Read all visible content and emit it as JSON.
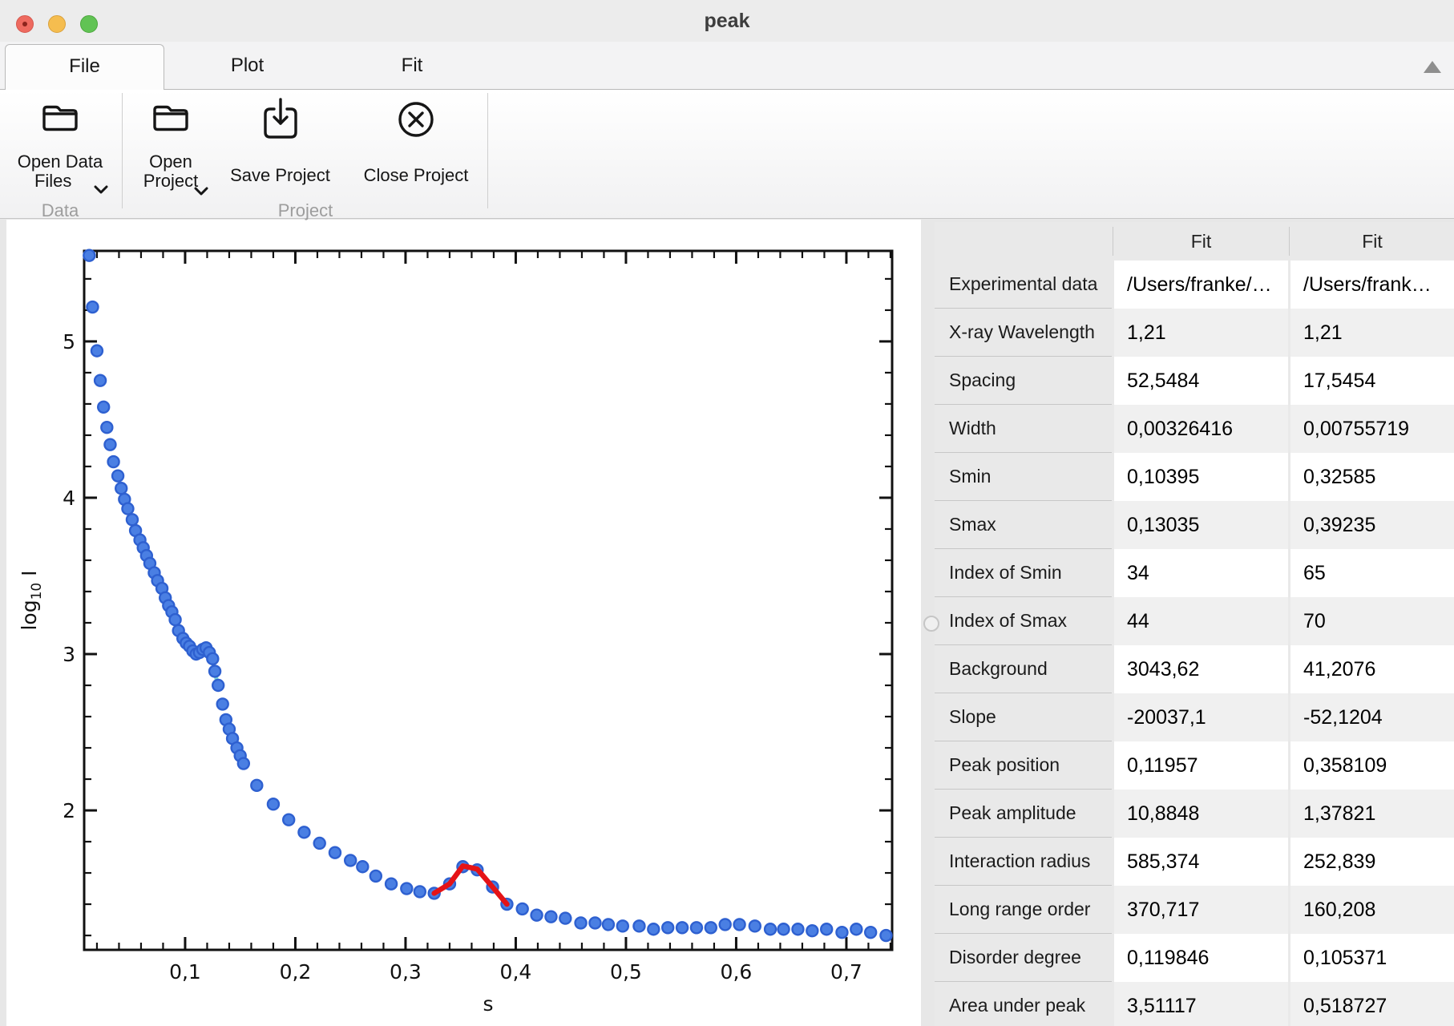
{
  "window": {
    "title": "peak"
  },
  "tabs": [
    {
      "label": "File",
      "active": true
    },
    {
      "label": "Plot",
      "active": false
    },
    {
      "label": "Fit",
      "active": false
    }
  ],
  "ribbon": {
    "buttons": {
      "open_data_files": {
        "line1": "Open Data",
        "line2": "Files",
        "has_dropdown": true
      },
      "open_project": {
        "line1": "Open",
        "line2": "Project",
        "has_dropdown": true
      },
      "save_project": {
        "label": "Save Project"
      },
      "close_project": {
        "label": "Close Project"
      }
    },
    "groups": [
      {
        "label": "Data"
      },
      {
        "label": "Project"
      }
    ],
    "collapse_icon": "triangle-up-icon"
  },
  "table": {
    "columns": [
      "",
      "Fit",
      "Fit"
    ],
    "rows": [
      {
        "label": "Experimental data",
        "fit1": "/Users/franke/…",
        "fit2": "/Users/frank…"
      },
      {
        "label": "X-ray Wavelength",
        "fit1": "1,21",
        "fit2": "1,21"
      },
      {
        "label": "Spacing",
        "fit1": "52,5484",
        "fit2": "17,5454"
      },
      {
        "label": "Width",
        "fit1": "0,00326416",
        "fit2": "0,00755719"
      },
      {
        "label": "Smin",
        "fit1": "0,10395",
        "fit2": "0,32585"
      },
      {
        "label": "Smax",
        "fit1": "0,13035",
        "fit2": "0,39235"
      },
      {
        "label": "Index of Smin",
        "fit1": "34",
        "fit2": "65"
      },
      {
        "label": "Index of Smax",
        "fit1": "44",
        "fit2": "70"
      },
      {
        "label": "Background",
        "fit1": "3043,62",
        "fit2": "41,2076"
      },
      {
        "label": "Slope",
        "fit1": "-20037,1",
        "fit2": "-52,1204"
      },
      {
        "label": "Peak position",
        "fit1": "0,11957",
        "fit2": "0,358109"
      },
      {
        "label": "Peak amplitude",
        "fit1": "10,8848",
        "fit2": "1,37821"
      },
      {
        "label": "Interaction radius",
        "fit1": "585,374",
        "fit2": "252,839"
      },
      {
        "label": "Long range order",
        "fit1": "370,717",
        "fit2": "160,208"
      },
      {
        "label": "Disorder degree",
        "fit1": "0,119846",
        "fit2": "0,105371"
      },
      {
        "label": "Area under peak",
        "fit1": "3,51117",
        "fit2": "0,518727"
      }
    ]
  },
  "chart_data": {
    "type": "scatter",
    "title": "",
    "xlabel": "s",
    "ylabel": "log10 I",
    "ylabel_parts": [
      "log",
      "10",
      " I"
    ],
    "xlim": [
      0.0084,
      0.7415
    ],
    "ylim": [
      1.108,
      5.579
    ],
    "x_tick_values": [
      0.1,
      0.2,
      0.3,
      0.4,
      0.5,
      0.6,
      0.7
    ],
    "x_tick_labels": [
      "0,1",
      "0,2",
      "0,3",
      "0,4",
      "0,5",
      "0,6",
      "0,7"
    ],
    "y_tick_values": [
      2,
      3,
      4,
      5
    ],
    "y_tick_labels": [
      "2",
      "3",
      "4",
      "5"
    ],
    "x_minor_step": 0.02,
    "x_major_step": 0.1,
    "y_minor_step": 0.2,
    "y_major_step": 1,
    "grid": false,
    "legend": false,
    "point_color": "#4a7fe3",
    "point_stroke": "#2e60d0",
    "frame_color": "#111111",
    "points": [
      [
        0.013,
        5.55
      ],
      [
        0.016,
        5.22
      ],
      [
        0.02,
        4.94
      ],
      [
        0.023,
        4.75
      ],
      [
        0.026,
        4.58
      ],
      [
        0.029,
        4.45
      ],
      [
        0.032,
        4.34
      ],
      [
        0.035,
        4.23
      ],
      [
        0.039,
        4.14
      ],
      [
        0.042,
        4.06
      ],
      [
        0.045,
        3.99
      ],
      [
        0.048,
        3.93
      ],
      [
        0.052,
        3.86
      ],
      [
        0.055,
        3.79
      ],
      [
        0.059,
        3.73
      ],
      [
        0.062,
        3.68
      ],
      [
        0.065,
        3.63
      ],
      [
        0.068,
        3.58
      ],
      [
        0.072,
        3.52
      ],
      [
        0.075,
        3.47
      ],
      [
        0.079,
        3.42
      ],
      [
        0.082,
        3.36
      ],
      [
        0.085,
        3.31
      ],
      [
        0.088,
        3.27
      ],
      [
        0.091,
        3.22
      ],
      [
        0.094,
        3.15
      ],
      [
        0.098,
        3.1
      ],
      [
        0.101,
        3.07
      ],
      [
        0.104,
        3.05
      ],
      [
        0.107,
        3.02
      ],
      [
        0.11,
        3.0
      ],
      [
        0.113,
        3.01
      ],
      [
        0.116,
        3.03
      ],
      [
        0.119,
        3.04
      ],
      [
        0.122,
        3.01
      ],
      [
        0.125,
        2.97
      ],
      [
        0.127,
        2.89
      ],
      [
        0.13,
        2.8
      ],
      [
        0.134,
        2.68
      ],
      [
        0.137,
        2.58
      ],
      [
        0.14,
        2.52
      ],
      [
        0.143,
        2.46
      ],
      [
        0.147,
        2.4
      ],
      [
        0.15,
        2.35
      ],
      [
        0.153,
        2.3
      ],
      [
        0.165,
        2.16
      ],
      [
        0.18,
        2.04
      ],
      [
        0.194,
        1.94
      ],
      [
        0.208,
        1.86
      ],
      [
        0.222,
        1.79
      ],
      [
        0.236,
        1.73
      ],
      [
        0.25,
        1.68
      ],
      [
        0.261,
        1.64
      ],
      [
        0.273,
        1.58
      ],
      [
        0.287,
        1.53
      ],
      [
        0.301,
        1.5
      ],
      [
        0.313,
        1.48
      ],
      [
        0.326,
        1.47
      ],
      [
        0.34,
        1.53
      ],
      [
        0.352,
        1.64
      ],
      [
        0.365,
        1.62
      ],
      [
        0.379,
        1.51
      ],
      [
        0.392,
        1.4
      ],
      [
        0.406,
        1.37
      ],
      [
        0.419,
        1.33
      ],
      [
        0.432,
        1.32
      ],
      [
        0.445,
        1.31
      ],
      [
        0.459,
        1.28
      ],
      [
        0.472,
        1.28
      ],
      [
        0.484,
        1.27
      ],
      [
        0.497,
        1.26
      ],
      [
        0.512,
        1.26
      ],
      [
        0.525,
        1.24
      ],
      [
        0.538,
        1.25
      ],
      [
        0.551,
        1.25
      ],
      [
        0.564,
        1.25
      ],
      [
        0.577,
        1.25
      ],
      [
        0.59,
        1.27
      ],
      [
        0.603,
        1.27
      ],
      [
        0.617,
        1.26
      ],
      [
        0.631,
        1.24
      ],
      [
        0.643,
        1.24
      ],
      [
        0.656,
        1.24
      ],
      [
        0.669,
        1.23
      ],
      [
        0.682,
        1.24
      ],
      [
        0.696,
        1.22
      ],
      [
        0.709,
        1.24
      ],
      [
        0.722,
        1.22
      ],
      [
        0.736,
        1.2
      ]
    ],
    "fits": [
      {
        "name": "fit-region-low-s",
        "color": "#7fd5d2",
        "width": 5,
        "points": [
          [
            0.104,
            3.05
          ],
          [
            0.107,
            3.02
          ],
          [
            0.11,
            3.0
          ],
          [
            0.113,
            3.01
          ],
          [
            0.116,
            3.03
          ],
          [
            0.119,
            3.04
          ],
          [
            0.122,
            3.01
          ],
          [
            0.125,
            2.96
          ],
          [
            0.127,
            2.88
          ],
          [
            0.13,
            2.8
          ]
        ]
      },
      {
        "name": "fit-region-high-s",
        "color": "#e51317",
        "width": 6.5,
        "points": [
          [
            0.326,
            1.47
          ],
          [
            0.34,
            1.53
          ],
          [
            0.352,
            1.645
          ],
          [
            0.365,
            1.625
          ],
          [
            0.379,
            1.51
          ],
          [
            0.392,
            1.4
          ]
        ]
      }
    ]
  }
}
